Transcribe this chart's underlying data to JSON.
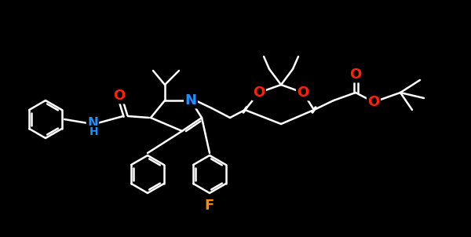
{
  "background_color": "#000000",
  "bond_color": "#ffffff",
  "atom_colors": {
    "N": "#1E90FF",
    "O": "#FF2200",
    "F": "#FF8C00",
    "C": "#ffffff",
    "H": "#1E90FF"
  },
  "line_width": 1.8,
  "font_size_atom": 11,
  "figsize": [
    6.0,
    3.02
  ],
  "dpi": 100
}
